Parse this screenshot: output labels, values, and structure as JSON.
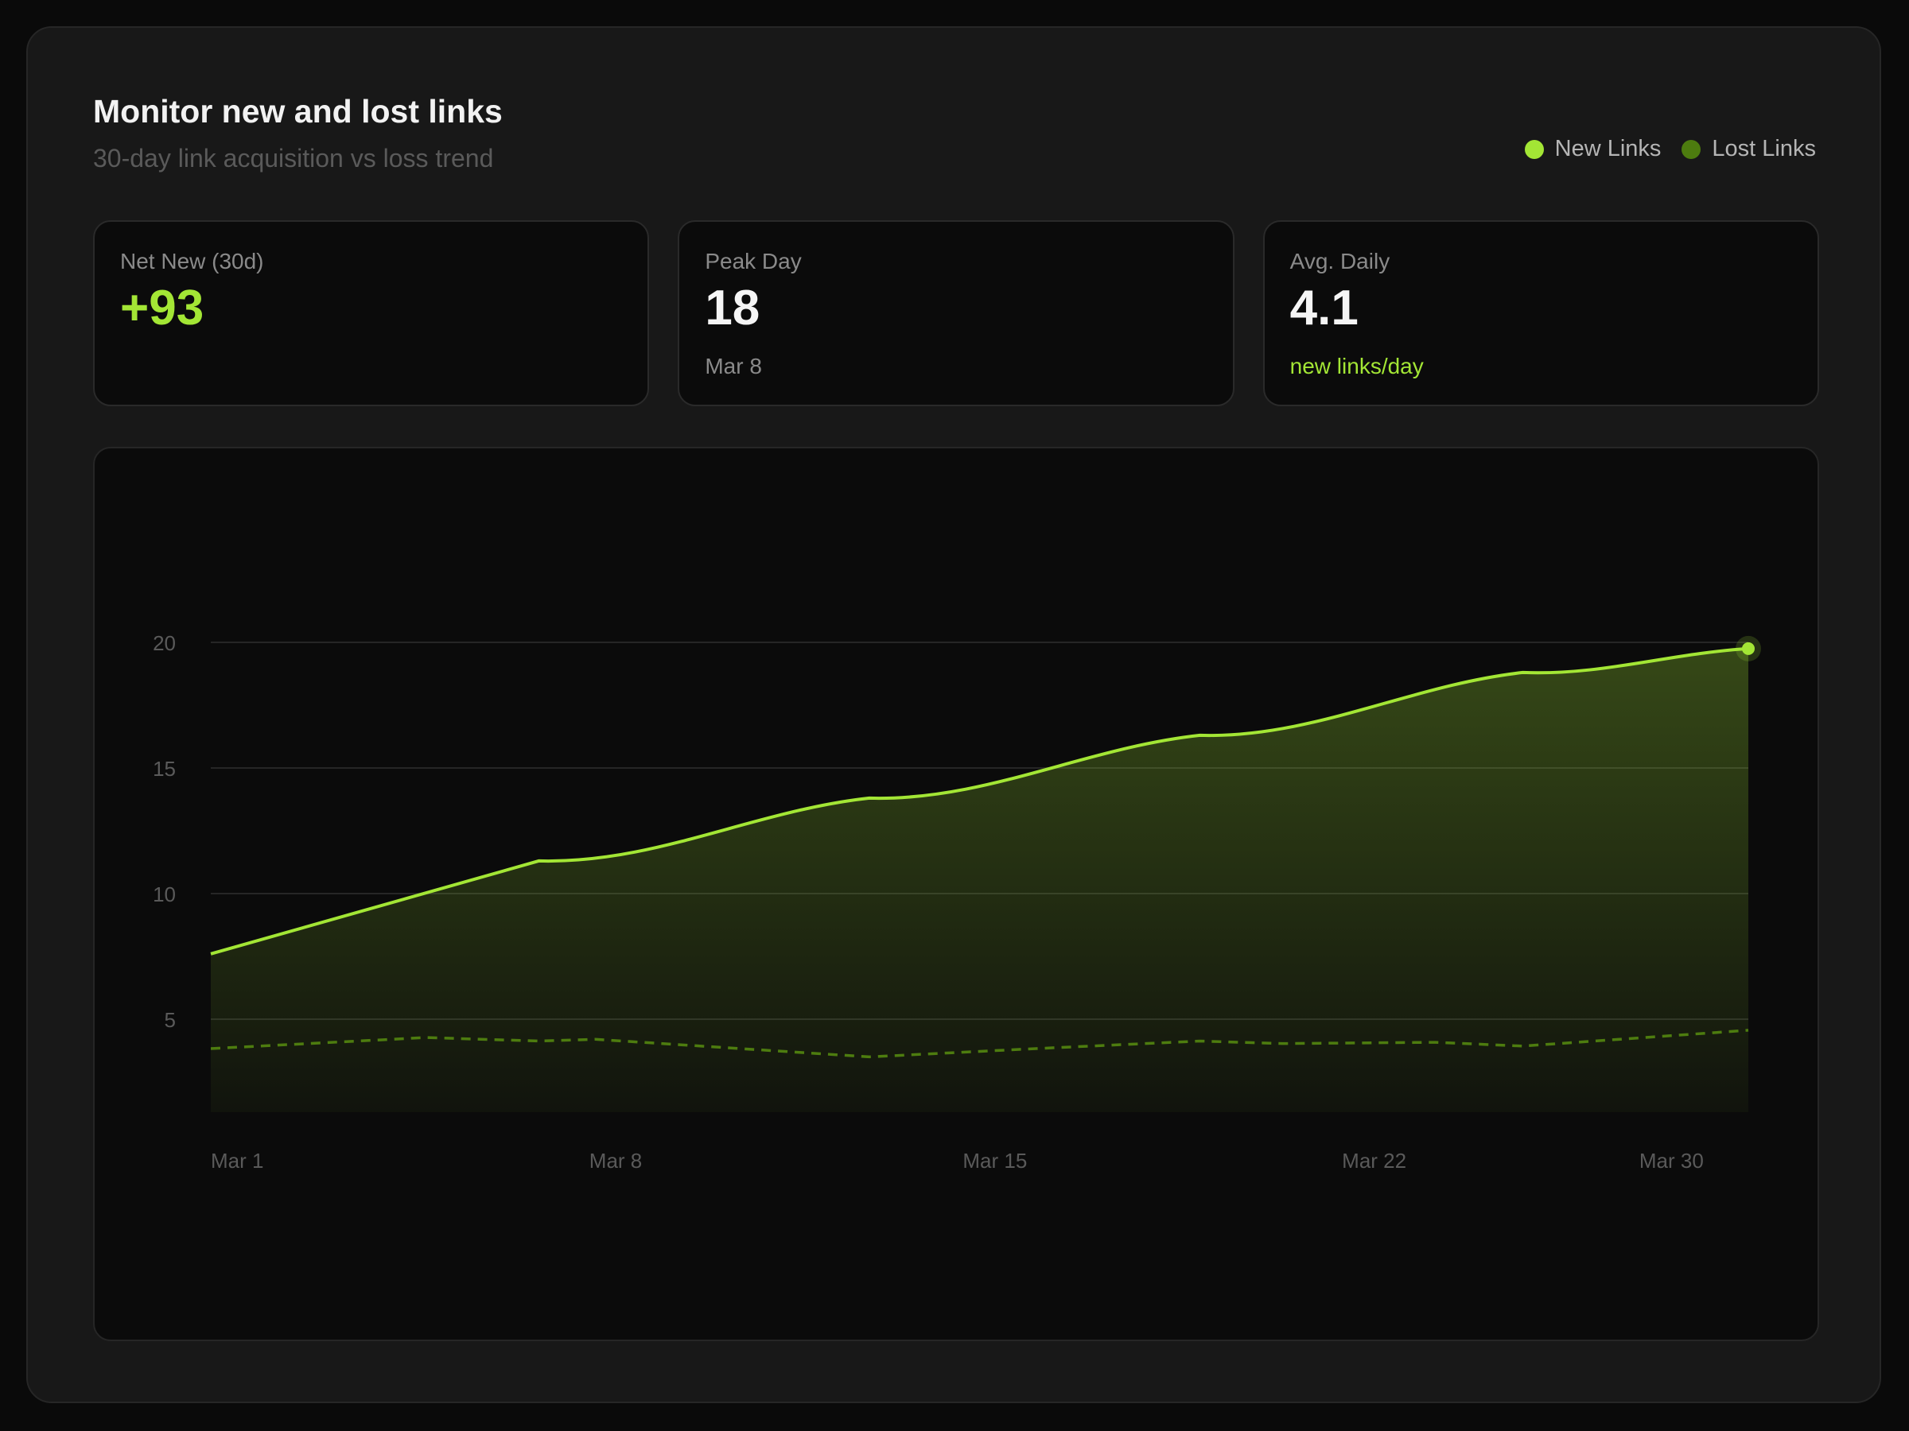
{
  "header": {
    "title": "Monitor new and lost links",
    "subtitle": "30-day link acquisition vs loss trend"
  },
  "legend": [
    {
      "label": "New Links",
      "color": "#a3e635"
    },
    {
      "label": "Lost Links",
      "color": "#4d7c0f"
    }
  ],
  "stats": [
    {
      "label": "Net New (30d)",
      "value": "+93",
      "sub": "",
      "value_color": "#a3e635"
    },
    {
      "label": "Peak Day",
      "value": "18",
      "sub": "Mar 8",
      "value_color": "#f5f5f5",
      "sub_color": "#8a8a8a"
    },
    {
      "label": "Avg. Daily",
      "value": "4.1",
      "sub": "new links/day",
      "value_color": "#f5f5f5",
      "sub_color": "#a3e635"
    }
  ],
  "chart_data": {
    "type": "area",
    "title": "",
    "xlabel": "",
    "ylabel": "",
    "xlim": [
      0,
      30
    ],
    "ylim": [
      1.3,
      20
    ],
    "grid": true,
    "yticks": [
      20,
      15,
      10,
      5
    ],
    "xticks": [
      {
        "label": "Mar 1",
        "day": 0
      },
      {
        "label": "Mar 8",
        "day": 7.9
      },
      {
        "label": "Mar 15",
        "day": 15.3
      },
      {
        "label": "Mar 22",
        "day": 22.7
      },
      {
        "label": "Mar 30",
        "day": 28.5
      }
    ],
    "series": [
      {
        "name": "New Links",
        "color": "#a3e635",
        "style": "solid-area",
        "points": [
          [
            0,
            7.6
          ],
          [
            6.4,
            11.3
          ],
          [
            12.85,
            13.8
          ],
          [
            19.3,
            16.3
          ],
          [
            25.6,
            18.8
          ],
          [
            30,
            19.75
          ]
        ]
      },
      {
        "name": "Lost Links",
        "color": "#4d7c0f",
        "style": "dashed",
        "points": [
          [
            0,
            3.83
          ],
          [
            4.2,
            4.27
          ],
          [
            6.4,
            4.13
          ],
          [
            7.5,
            4.2
          ],
          [
            12.85,
            3.5
          ],
          [
            16.1,
            3.83
          ],
          [
            19.3,
            4.13
          ],
          [
            20.9,
            4.03
          ],
          [
            23.9,
            4.08
          ],
          [
            25.6,
            3.93
          ],
          [
            30,
            4.56
          ]
        ]
      }
    ]
  }
}
